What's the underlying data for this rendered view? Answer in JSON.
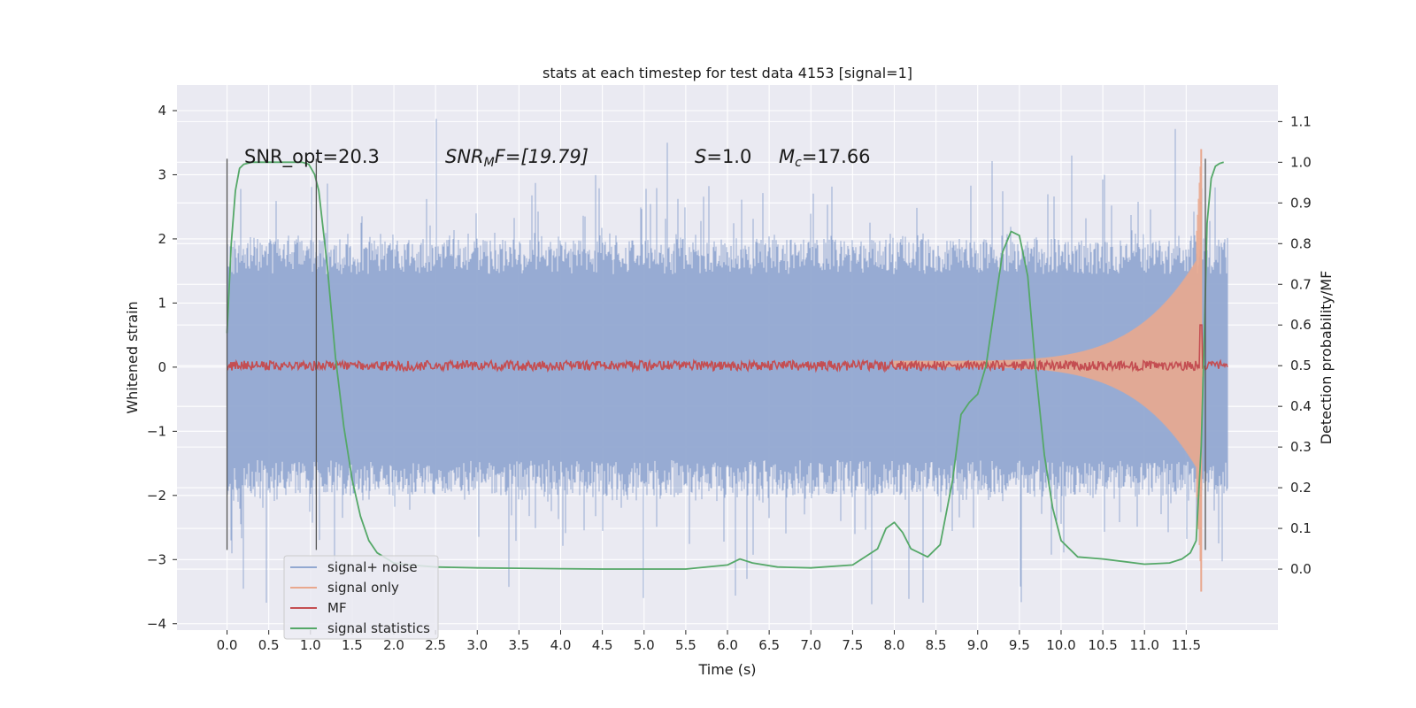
{
  "chart_data": {
    "type": "line",
    "title": "stats at each timestep for test data 4153 [signal=1]",
    "xlabel": "Time (s)",
    "ylabel": "Whitened strain",
    "ylabel_right": "Detection probability/MF",
    "xlim": [
      -0.6,
      12.6
    ],
    "ylim": [
      -4.1,
      4.4
    ],
    "ylim_right": [
      -0.15,
      1.19
    ],
    "xticks": [
      "0.0",
      "0.5",
      "1.0",
      "1.5",
      "2.0",
      "2.5",
      "3.0",
      "3.5",
      "4.0",
      "4.5",
      "5.0",
      "5.5",
      "6.0",
      "6.5",
      "7.0",
      "7.5",
      "8.0",
      "8.5",
      "9.0",
      "9.5",
      "10.0",
      "10.5",
      "11.0",
      "11.5"
    ],
    "yticks": [
      "4",
      "3",
      "2",
      "1",
      "0",
      "−1",
      "−2",
      "−3",
      "−4"
    ],
    "yticks_right": [
      "1.1",
      "1.0",
      "0.9",
      "0.8",
      "0.7",
      "0.6",
      "0.5",
      "0.4",
      "0.3",
      "0.2",
      "0.1",
      "0.0"
    ],
    "annotations": {
      "snr_opt": "SNR_opt=20.3",
      "snr_mf": "SNR",
      "snr_mf_sub": "M",
      "snr_mf_rest": "F=[19.79]",
      "s_label": "S",
      "s_value": "=1.0",
      "mc_label": "M",
      "mc_sub": "c",
      "mc_value": "=17.66"
    },
    "vlines": [
      {
        "x": 0.0,
        "y0": -2.85,
        "y1": 3.25
      },
      {
        "x": 1.07,
        "y0": -2.85,
        "y1": 3.25
      },
      {
        "x": 11.73,
        "y0": -2.85,
        "y1": 3.25
      }
    ],
    "grid": true,
    "legend": "lower-left",
    "series": [
      {
        "name": "signal+ noise",
        "color": "#92a8d1",
        "x_range": [
          0.0,
          12.0
        ],
        "band_upper": 1.45,
        "band_lower": -1.45,
        "peak_upper": 4.1,
        "peak_lower": -3.7,
        "axis": "left"
      },
      {
        "name": "signal only",
        "color": "#e9a88e",
        "chirp_start": 8.0,
        "chirp_peak_time": 11.68,
        "chirp_peak": 3.4,
        "chirp_trough": -3.5,
        "axis": "left"
      },
      {
        "name": "MF",
        "color": "#c44e52",
        "level": 0.5,
        "noise": 0.012,
        "spike_x": 11.68,
        "spike_y": 0.6,
        "axis": "right"
      },
      {
        "name": "signal statistics",
        "color": "#55a868",
        "axis": "right",
        "x": [
          0.0,
          0.05,
          0.1,
          0.15,
          0.2,
          0.3,
          0.5,
          0.7,
          0.9,
          0.98,
          1.05,
          1.1,
          1.2,
          1.3,
          1.4,
          1.5,
          1.6,
          1.7,
          1.8,
          2.0,
          2.2,
          2.5,
          3.0,
          3.5,
          4.0,
          4.5,
          5.0,
          5.5,
          6.0,
          6.15,
          6.3,
          6.6,
          7.0,
          7.5,
          7.8,
          7.9,
          8.0,
          8.1,
          8.2,
          8.4,
          8.55,
          8.7,
          8.8,
          8.9,
          9.0,
          9.1,
          9.2,
          9.3,
          9.4,
          9.5,
          9.6,
          9.7,
          9.8,
          9.9,
          10.0,
          10.2,
          10.5,
          11.0,
          11.3,
          11.45,
          11.55,
          11.62,
          11.68,
          11.72,
          11.75,
          11.8,
          11.85,
          11.9,
          11.95
        ],
        "values": [
          0.58,
          0.8,
          0.93,
          0.985,
          0.995,
          1.0,
          1.0,
          1.0,
          1.0,
          0.995,
          0.97,
          0.93,
          0.75,
          0.52,
          0.35,
          0.22,
          0.13,
          0.07,
          0.04,
          0.015,
          0.01,
          0.005,
          0.003,
          0.002,
          0.001,
          0.0,
          0.0,
          0.0,
          0.01,
          0.025,
          0.015,
          0.005,
          0.003,
          0.01,
          0.05,
          0.1,
          0.115,
          0.09,
          0.05,
          0.03,
          0.06,
          0.22,
          0.38,
          0.41,
          0.43,
          0.5,
          0.64,
          0.78,
          0.83,
          0.82,
          0.72,
          0.48,
          0.28,
          0.15,
          0.07,
          0.03,
          0.025,
          0.012,
          0.015,
          0.025,
          0.04,
          0.07,
          0.3,
          0.6,
          0.85,
          0.96,
          0.99,
          0.997,
          1.0
        ]
      }
    ]
  }
}
